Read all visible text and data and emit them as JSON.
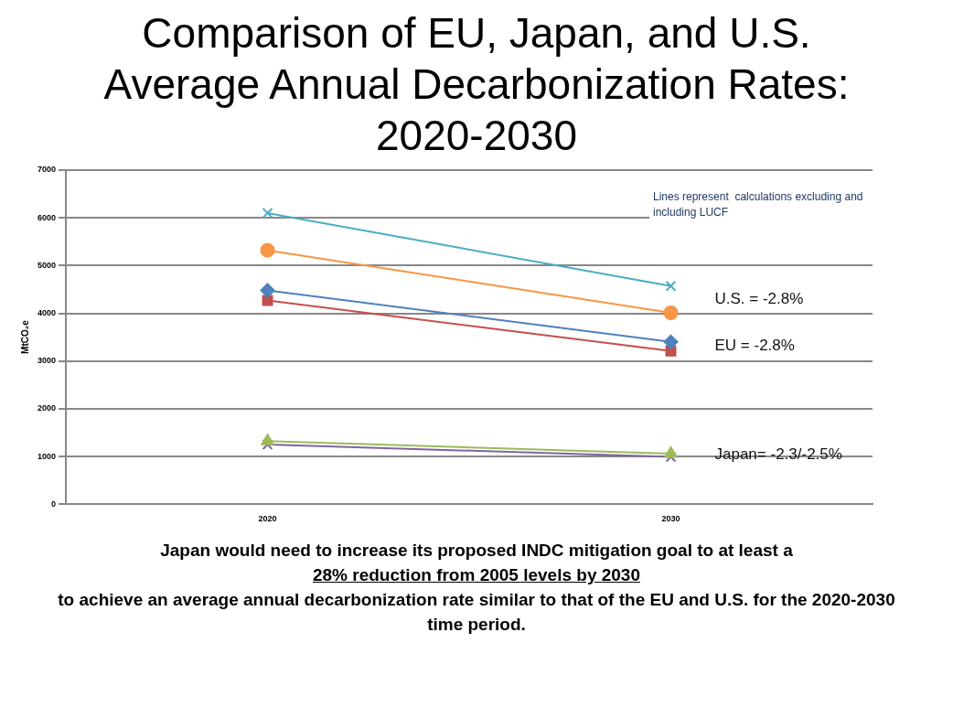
{
  "chart_data": {
    "type": "line",
    "title": "Comparison of EU, Japan, and U.S. Average Annual Decarbonization Rates: 2020-2030",
    "ylabel": "MtCO₂e",
    "categories": [
      "2020",
      "2030"
    ],
    "series": [
      {
        "color": "#4bacc6",
        "marker": "cross",
        "values": [
          6100,
          4570
        ]
      },
      {
        "color": "#f79646",
        "marker": "circle",
        "values": [
          5320,
          4010
        ]
      },
      {
        "color": "#4f81bd",
        "marker": "diamond",
        "values": [
          4480,
          3400
        ]
      },
      {
        "color": "#c0504d",
        "marker": "square",
        "values": [
          4270,
          3210
        ]
      },
      {
        "color": "#9bbb59",
        "marker": "triangle",
        "values": [
          1320,
          1060
        ]
      },
      {
        "color": "#8064a2",
        "marker": "cross",
        "values": [
          1250,
          990
        ]
      }
    ],
    "ylim": [
      0,
      7000
    ],
    "yticks": [
      0,
      1000,
      2000,
      3000,
      4000,
      5000,
      6000,
      7000
    ],
    "grid": "y",
    "legend": false,
    "annotations": [
      "Lines represent  calculations excluding and including LUCF",
      "U.S. = -2.8%",
      "EU = -2.8%",
      "Japan= -2.3/-2.5%",
      "Japan  would need to increase its proposed INDC mitigation goal to at least a",
      "28% reduction from 2005 levels by 2030",
      "to achieve an average annual  decarbonization  rate similar  to that of the EU and U.S.  for the 2020-2030 time period."
    ]
  }
}
